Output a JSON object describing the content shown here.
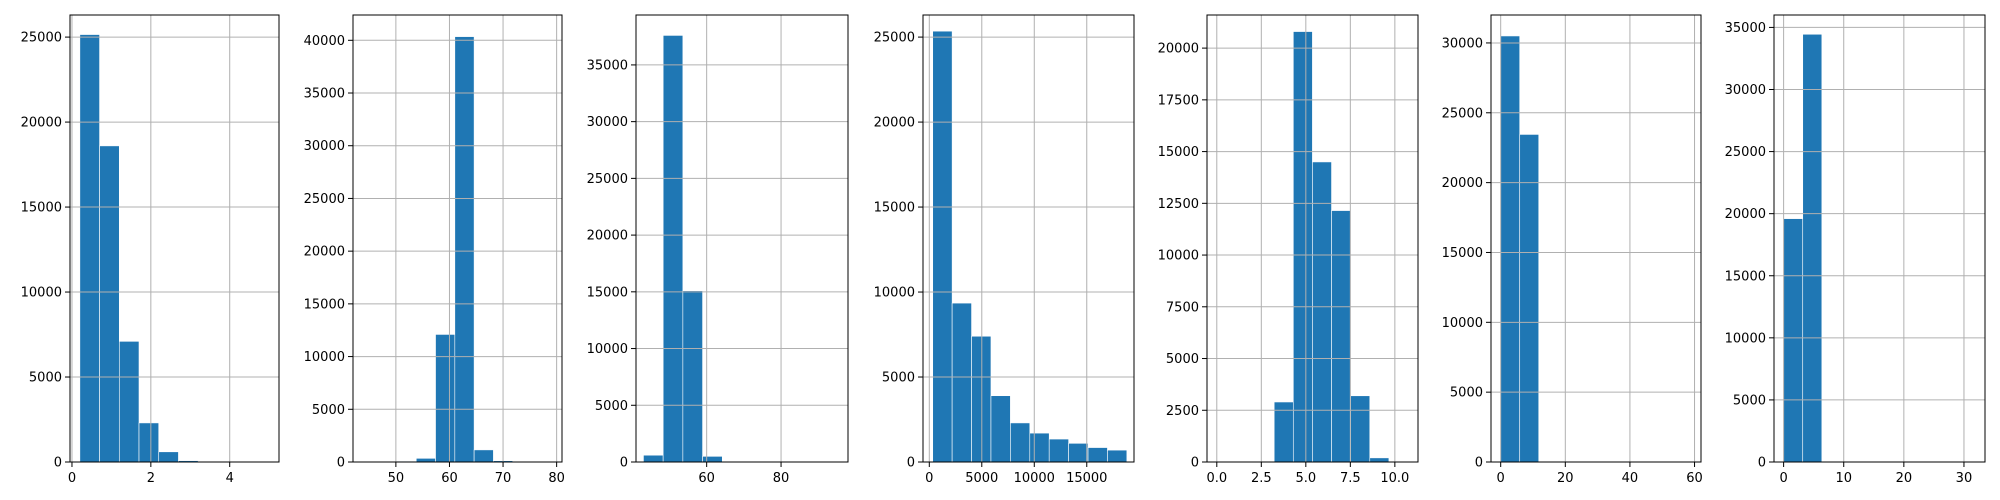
{
  "style": {
    "bar_color": "#1f77b4",
    "edge_color": "#ffffff",
    "grid_color": "#b0b0b0"
  },
  "chart_data": [
    {
      "type": "bar",
      "title": "",
      "xlabel": "",
      "ylabel": "",
      "grid": true,
      "xlim": [
        -0.05,
        5.25
      ],
      "ylim": [
        0,
        26300
      ],
      "xticks": [
        0,
        2,
        4
      ],
      "xtick_labels": [
        "0",
        "2",
        "4"
      ],
      "yticks": [
        0,
        5000,
        10000,
        15000,
        20000,
        25000
      ],
      "ytick_labels": [
        "0",
        "5000",
        "10000",
        "15000",
        "20000",
        "25000"
      ],
      "bin_edges": [
        0.2,
        0.7,
        1.2,
        1.7,
        2.2,
        2.7,
        3.2,
        3.7,
        4.2,
        4.7,
        5.2
      ],
      "values": [
        25150,
        18600,
        7100,
        2300,
        600,
        80,
        20,
        5,
        2,
        1
      ]
    },
    {
      "type": "bar",
      "title": "",
      "xlabel": "",
      "ylabel": "",
      "grid": true,
      "xlim": [
        42,
        81
      ],
      "ylim": [
        0,
        42400
      ],
      "xticks": [
        50,
        60,
        70,
        80
      ],
      "xtick_labels": [
        "50",
        "60",
        "70",
        "80"
      ],
      "yticks": [
        0,
        5000,
        10000,
        15000,
        20000,
        25000,
        30000,
        35000,
        40000
      ],
      "ytick_labels": [
        "0",
        "5000",
        "10000",
        "15000",
        "20000",
        "25000",
        "30000",
        "35000",
        "40000"
      ],
      "bin_edges": [
        43,
        46.6,
        50.2,
        53.8,
        57.4,
        61,
        64.6,
        68.2,
        71.8,
        75.4,
        79
      ],
      "values": [
        5,
        10,
        80,
        350,
        12100,
        40350,
        1150,
        120,
        20,
        5
      ]
    },
    {
      "type": "bar",
      "title": "",
      "xlabel": "",
      "ylabel": "",
      "grid": true,
      "xlim": [
        41,
        98
      ],
      "ylim": [
        0,
        39400
      ],
      "xticks": [
        60,
        80
      ],
      "xtick_labels": [
        "60",
        "80"
      ],
      "yticks": [
        0,
        5000,
        10000,
        15000,
        20000,
        25000,
        30000,
        35000
      ],
      "ytick_labels": [
        "0",
        "5000",
        "10000",
        "15000",
        "20000",
        "25000",
        "30000",
        "35000"
      ],
      "bin_edges": [
        43,
        48.3,
        53.6,
        58.9,
        64.2,
        69.5,
        74.8,
        80.1,
        85.4,
        90.7,
        96
      ],
      "values": [
        600,
        37600,
        15100,
        500,
        30,
        5,
        2,
        1,
        1,
        1
      ]
    },
    {
      "type": "bar",
      "title": "",
      "xlabel": "",
      "ylabel": "",
      "grid": true,
      "xlim": [
        -600,
        19500
      ],
      "ylim": [
        0,
        26300
      ],
      "xticks": [
        0,
        5000,
        10000,
        15000
      ],
      "xtick_labels": [
        "0",
        "5000",
        "10000",
        "15000"
      ],
      "yticks": [
        0,
        5000,
        10000,
        15000,
        20000,
        25000
      ],
      "ytick_labels": [
        "0",
        "5000",
        "10000",
        "15000",
        "20000",
        "25000"
      ],
      "bin_edges": [
        326,
        2175,
        4025,
        5874,
        7724,
        9573,
        11422,
        13272,
        15121,
        16971,
        18820
      ],
      "values": [
        25350,
        9350,
        7400,
        3900,
        2300,
        1700,
        1350,
        1100,
        850,
        700
      ]
    },
    {
      "type": "bar",
      "title": "",
      "xlabel": "",
      "ylabel": "",
      "grid": true,
      "xlim": [
        -0.55,
        11.3
      ],
      "ylim": [
        0,
        21600
      ],
      "xticks": [
        0.0,
        2.5,
        5.0,
        7.5,
        10.0
      ],
      "xtick_labels": [
        "0.0",
        "2.5",
        "5.0",
        "7.5",
        "10.0"
      ],
      "yticks": [
        0,
        2500,
        5000,
        7500,
        10000,
        12500,
        15000,
        17500,
        20000
      ],
      "ytick_labels": [
        "0",
        "2500",
        "5000",
        "7500",
        "10000",
        "12500",
        "15000",
        "17500",
        "20000"
      ],
      "bin_edges": [
        0,
        1.074,
        2.148,
        3.222,
        4.296,
        5.37,
        6.444,
        7.518,
        8.592,
        9.666,
        10.74
      ],
      "values": [
        5,
        1,
        2,
        2900,
        20800,
        14500,
        12150,
        3200,
        200,
        10
      ]
    },
    {
      "type": "bar",
      "title": "",
      "xlabel": "",
      "ylabel": "",
      "grid": true,
      "xlim": [
        -3,
        62
      ],
      "ylim": [
        0,
        32000
      ],
      "xticks": [
        0,
        20,
        40,
        60
      ],
      "xtick_labels": [
        "0",
        "20",
        "40",
        "60"
      ],
      "yticks": [
        0,
        5000,
        10000,
        15000,
        20000,
        25000,
        30000
      ],
      "ytick_labels": [
        "0",
        "5000",
        "10000",
        "15000",
        "20000",
        "25000",
        "30000"
      ],
      "bin_edges": [
        0,
        5.89,
        11.78,
        17.67,
        23.56,
        29.45,
        35.34,
        41.23,
        47.12,
        53.01,
        58.9
      ],
      "values": [
        30500,
        23450,
        5,
        1,
        1,
        1,
        1,
        1,
        1,
        1
      ]
    },
    {
      "type": "bar",
      "title": "",
      "xlabel": "",
      "ylabel": "",
      "grid": true,
      "xlim": [
        -1.6,
        33.5
      ],
      "ylim": [
        0,
        36000
      ],
      "xticks": [
        0,
        10,
        20,
        30
      ],
      "xtick_labels": [
        "0",
        "10",
        "20",
        "30"
      ],
      "yticks": [
        0,
        5000,
        10000,
        15000,
        20000,
        25000,
        30000,
        35000
      ],
      "ytick_labels": [
        "0",
        "5000",
        "10000",
        "15000",
        "20000",
        "25000",
        "30000",
        "35000"
      ],
      "bin_edges": [
        0,
        3.18,
        6.36,
        9.54,
        12.72,
        15.9,
        19.08,
        22.26,
        25.44,
        28.62,
        31.8
      ],
      "values": [
        19600,
        34450,
        5,
        1,
        1,
        1,
        1,
        1,
        1,
        1
      ]
    }
  ]
}
